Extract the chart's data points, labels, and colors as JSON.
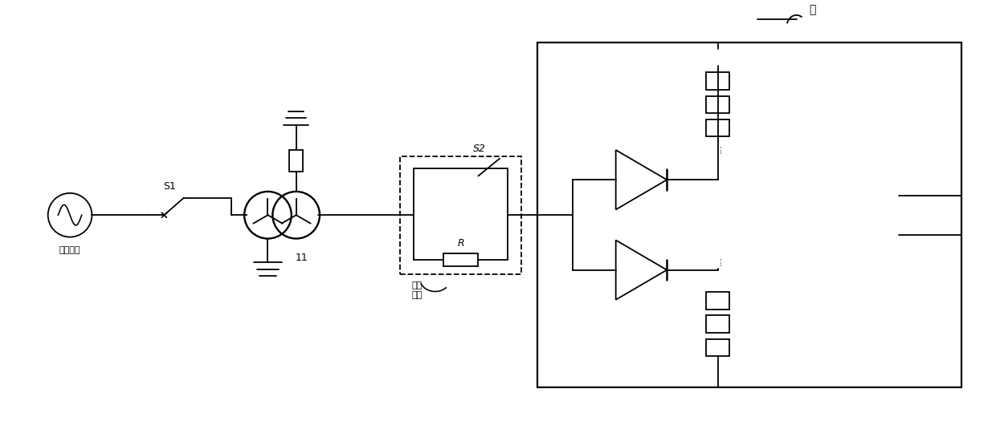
{
  "bg": "#ffffff",
  "lc": "#000000",
  "lw": 1.3,
  "fig_w": 12.4,
  "fig_h": 5.35,
  "labels": {
    "ac_grid": "交流电网",
    "s1": "S1",
    "tr_num": "11",
    "s2": "S2",
    "r_lbl": "R",
    "start_loop": "启动\n回路",
    "valve": "阀"
  }
}
